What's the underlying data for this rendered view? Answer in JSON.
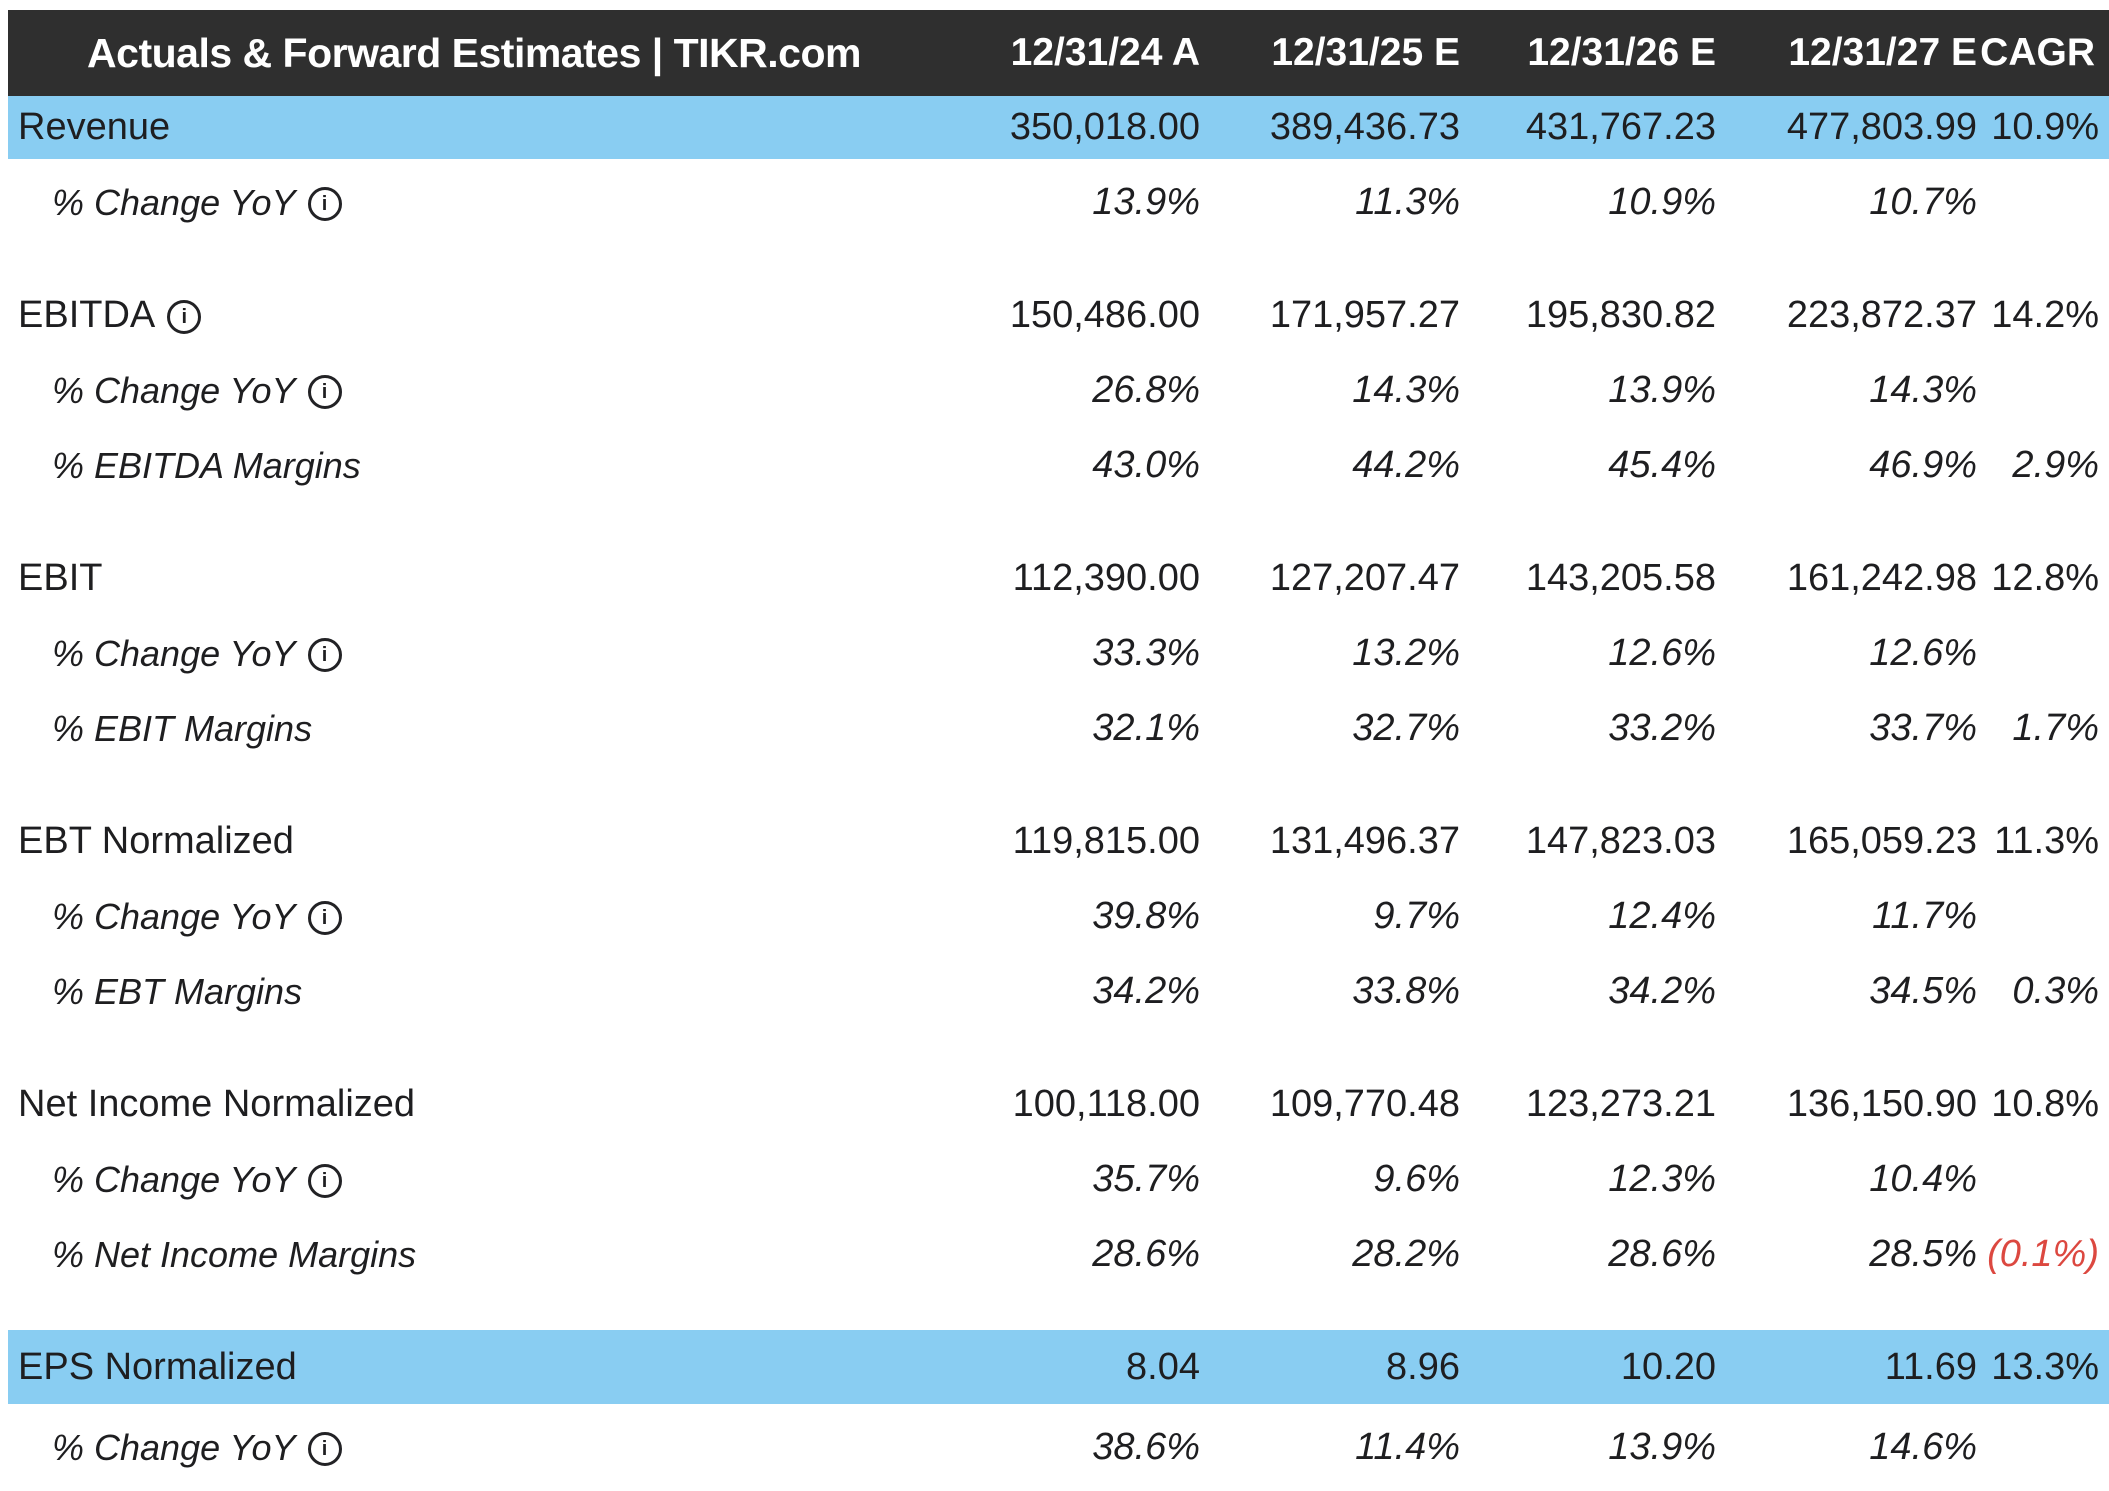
{
  "title_bar": {
    "title": "Actuals & Forward Estimates | TIKR.com",
    "columns": [
      "12/31/24 A",
      "12/31/25 E",
      "12/31/26 E",
      "12/31/27 E",
      "CAGR"
    ]
  },
  "colors": {
    "header_bg": "#2f2f2f",
    "highlight_blue": "#89cdf2",
    "text": "#1e1e20",
    "negative_red": "#dc4840"
  },
  "icons": {
    "info": "i"
  },
  "rows": [
    {
      "label": "Revenue",
      "sub": false,
      "info": false,
      "highlight": true,
      "group_end": false,
      "tall": false,
      "values": [
        "350,018.00",
        "389,436.73",
        "431,767.23",
        "477,803.99"
      ],
      "cagr": "10.9%"
    },
    {
      "label": "% Change YoY",
      "sub": true,
      "info": true,
      "highlight": false,
      "group_end": true,
      "tall": false,
      "values": [
        "13.9%",
        "11.3%",
        "10.9%",
        "10.7%"
      ],
      "cagr": ""
    },
    {
      "label": "EBITDA",
      "sub": false,
      "info": true,
      "highlight": false,
      "group_end": false,
      "tall": false,
      "values": [
        "150,486.00",
        "171,957.27",
        "195,830.82",
        "223,872.37"
      ],
      "cagr": "14.2%"
    },
    {
      "label": "% Change YoY",
      "sub": true,
      "info": true,
      "highlight": false,
      "group_end": false,
      "tall": false,
      "values": [
        "26.8%",
        "14.3%",
        "13.9%",
        "14.3%"
      ],
      "cagr": ""
    },
    {
      "label": "% EBITDA Margins",
      "sub": true,
      "info": false,
      "highlight": false,
      "group_end": true,
      "tall": false,
      "values": [
        "43.0%",
        "44.2%",
        "45.4%",
        "46.9%"
      ],
      "cagr": "2.9%"
    },
    {
      "label": "EBIT",
      "sub": false,
      "info": false,
      "highlight": false,
      "group_end": false,
      "tall": false,
      "values": [
        "112,390.00",
        "127,207.47",
        "143,205.58",
        "161,242.98"
      ],
      "cagr": "12.8%"
    },
    {
      "label": "% Change YoY",
      "sub": true,
      "info": true,
      "highlight": false,
      "group_end": false,
      "tall": false,
      "values": [
        "33.3%",
        "13.2%",
        "12.6%",
        "12.6%"
      ],
      "cagr": ""
    },
    {
      "label": "% EBIT Margins",
      "sub": true,
      "info": false,
      "highlight": false,
      "group_end": true,
      "tall": false,
      "values": [
        "32.1%",
        "32.7%",
        "33.2%",
        "33.7%"
      ],
      "cagr": "1.7%"
    },
    {
      "label": "EBT Normalized",
      "sub": false,
      "info": false,
      "highlight": false,
      "group_end": false,
      "tall": false,
      "values": [
        "119,815.00",
        "131,496.37",
        "147,823.03",
        "165,059.23"
      ],
      "cagr": "11.3%"
    },
    {
      "label": "% Change YoY",
      "sub": true,
      "info": true,
      "highlight": false,
      "group_end": false,
      "tall": false,
      "values": [
        "39.8%",
        "9.7%",
        "12.4%",
        "11.7%"
      ],
      "cagr": ""
    },
    {
      "label": "% EBT Margins",
      "sub": true,
      "info": false,
      "highlight": false,
      "group_end": true,
      "tall": false,
      "values": [
        "34.2%",
        "33.8%",
        "34.2%",
        "34.5%"
      ],
      "cagr": "0.3%"
    },
    {
      "label": "Net Income Normalized",
      "sub": false,
      "info": false,
      "highlight": false,
      "group_end": false,
      "tall": false,
      "values": [
        "100,118.00",
        "109,770.48",
        "123,273.21",
        "136,150.90"
      ],
      "cagr": "10.8%"
    },
    {
      "label": "% Change YoY",
      "sub": true,
      "info": true,
      "highlight": false,
      "group_end": false,
      "tall": false,
      "values": [
        "35.7%",
        "9.6%",
        "12.3%",
        "10.4%"
      ],
      "cagr": ""
    },
    {
      "label": "% Net Income Margins",
      "sub": true,
      "info": false,
      "highlight": false,
      "group_end": true,
      "tall": false,
      "values": [
        "28.6%",
        "28.2%",
        "28.6%",
        "28.5%"
      ],
      "cagr": "(0.1%)"
    },
    {
      "label": "EPS Normalized",
      "sub": false,
      "info": false,
      "highlight": true,
      "group_end": false,
      "tall": true,
      "values": [
        "8.04",
        "8.96",
        "10.20",
        "11.69"
      ],
      "cagr": "13.3%"
    },
    {
      "label": "% Change YoY",
      "sub": true,
      "info": true,
      "highlight": false,
      "group_end": false,
      "tall": false,
      "values": [
        "38.6%",
        "11.4%",
        "13.9%",
        "14.6%"
      ],
      "cagr": ""
    }
  ]
}
